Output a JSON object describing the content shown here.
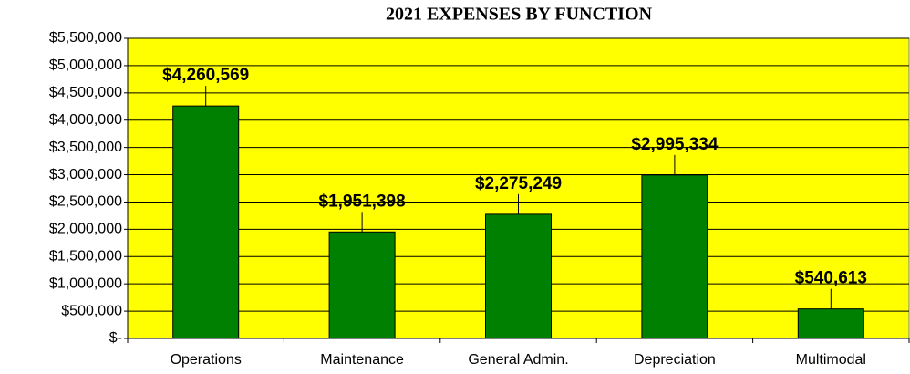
{
  "chart_data": {
    "type": "bar",
    "title": "2021 EXPENSES BY FUNCTION",
    "categories": [
      "Operations",
      "Maintenance",
      "General Admin.",
      "Depreciation",
      "Multimodal"
    ],
    "values": [
      4260569,
      1951398,
      2275249,
      2995334,
      540613
    ],
    "value_labels": [
      "$4,260,569",
      "$1,951,398",
      "$2,275,249",
      "$2,995,334",
      "$540,613"
    ],
    "color": "#008000",
    "plot_background": "#ffff00",
    "ylim": [
      0,
      5500000
    ],
    "yticks": [
      {
        "value": 0,
        "label": "$-"
      },
      {
        "value": 500000,
        "label": "$500,000"
      },
      {
        "value": 1000000,
        "label": "$1,000,000"
      },
      {
        "value": 1500000,
        "label": "$1,500,000"
      },
      {
        "value": 2000000,
        "label": "$2,000,000"
      },
      {
        "value": 2500000,
        "label": "$2,500,000"
      },
      {
        "value": 3000000,
        "label": "$3,000,000"
      },
      {
        "value": 3500000,
        "label": "$3,500,000"
      },
      {
        "value": 4000000,
        "label": "$4,000,000"
      },
      {
        "value": 4500000,
        "label": "$4,500,000"
      },
      {
        "value": 5000000,
        "label": "$5,000,000"
      },
      {
        "value": 5500000,
        "label": "$5,500,000"
      }
    ],
    "grid": true
  }
}
